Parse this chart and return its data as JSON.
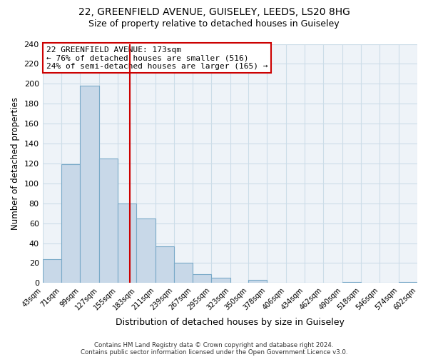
{
  "title1": "22, GREENFIELD AVENUE, GUISELEY, LEEDS, LS20 8HG",
  "title2": "Size of property relative to detached houses in Guiseley",
  "xlabel": "Distribution of detached houses by size in Guiseley",
  "ylabel": "Number of detached properties",
  "bin_edges": [
    43,
    71,
    99,
    127,
    155,
    183,
    211,
    239,
    267,
    295,
    323,
    350,
    378,
    406,
    434,
    462,
    490,
    518,
    546,
    574,
    602
  ],
  "bin_labels": [
    "43sqm",
    "71sqm",
    "99sqm",
    "127sqm",
    "155sqm",
    "183sqm",
    "211sqm",
    "239sqm",
    "267sqm",
    "295sqm",
    "323sqm",
    "350sqm",
    "378sqm",
    "406sqm",
    "434sqm",
    "462sqm",
    "490sqm",
    "518sqm",
    "546sqm",
    "574sqm",
    "602sqm"
  ],
  "counts": [
    24,
    119,
    198,
    125,
    80,
    65,
    37,
    20,
    9,
    5,
    0,
    3,
    0,
    0,
    0,
    0,
    1,
    0,
    0,
    1
  ],
  "bar_facecolor": "#c8d8e8",
  "bar_edgecolor": "#7aaac8",
  "vline_x": 173,
  "vline_color": "#cc0000",
  "annotation_box_text": "22 GREENFIELD AVENUE: 173sqm\n← 76% of detached houses are smaller (516)\n24% of semi-detached houses are larger (165) →",
  "annotation_box_color": "#cc0000",
  "annotation_facecolor": "white",
  "ylim": [
    0,
    240
  ],
  "yticks": [
    0,
    20,
    40,
    60,
    80,
    100,
    120,
    140,
    160,
    180,
    200,
    220,
    240
  ],
  "grid_color": "#ccdde8",
  "footer1": "Contains HM Land Registry data © Crown copyright and database right 2024.",
  "footer2": "Contains public sector information licensed under the Open Government Licence v3.0.",
  "title1_fontsize": 10,
  "title2_fontsize": 9,
  "background_color": "white",
  "plot_bg_color": "#eef3f8"
}
